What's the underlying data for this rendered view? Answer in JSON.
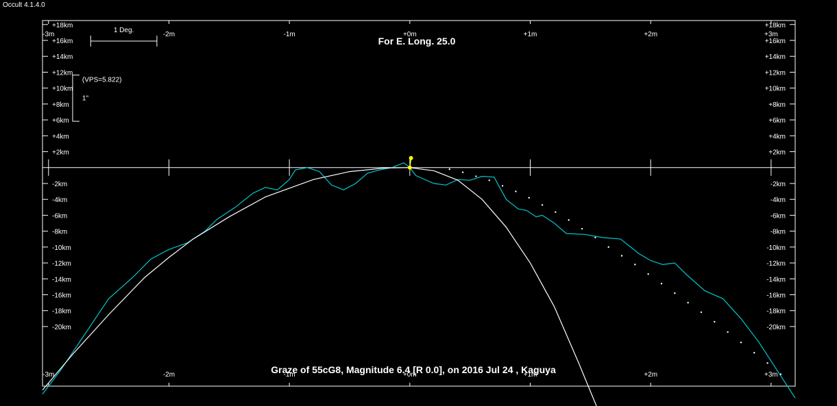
{
  "app_title": "Occult 4.1.4.0",
  "chart_data": {
    "type": "line",
    "title": "For E. Long. 25.0",
    "caption": "Graze of  55cG8,  Magnitude 6.4 [R 0.0],  on 2016 Jul 24 ,  Kaguya",
    "xlim": [
      -3.05,
      3.2
    ],
    "ylim": [
      -27.5,
      18.5
    ],
    "x_ticks": [
      {
        "v": -3,
        "label": "-3m"
      },
      {
        "v": -2,
        "label": "-2m"
      },
      {
        "v": -1,
        "label": "-1m"
      },
      {
        "v": 0,
        "label": "+0m"
      },
      {
        "v": 1,
        "label": "+1m"
      },
      {
        "v": 2,
        "label": "+2m"
      },
      {
        "v": 3,
        "label": "+3m"
      }
    ],
    "y_ticks": [
      {
        "v": 18,
        "label": "+18km"
      },
      {
        "v": 16,
        "label": "+16km"
      },
      {
        "v": 14,
        "label": "+14km"
      },
      {
        "v": 12,
        "label": "+12km"
      },
      {
        "v": 10,
        "label": "+10km"
      },
      {
        "v": 8,
        "label": "+8km"
      },
      {
        "v": 6,
        "label": "+6km"
      },
      {
        "v": 4,
        "label": "+4km"
      },
      {
        "v": 2,
        "label": "+2km"
      },
      {
        "v": -2,
        "label": "-2km"
      },
      {
        "v": -4,
        "label": "-4km"
      },
      {
        "v": -6,
        "label": "-6km"
      },
      {
        "v": -8,
        "label": "-8km"
      },
      {
        "v": -10,
        "label": "-10km"
      },
      {
        "v": -12,
        "label": "-12km"
      },
      {
        "v": -14,
        "label": "-14km"
      },
      {
        "v": -16,
        "label": "-16km"
      },
      {
        "v": -18,
        "label": "-18km"
      },
      {
        "v": -20,
        "label": "-20km"
      }
    ],
    "scale_bar_label": "1 Deg.",
    "scale_bar_deg": 0.55,
    "vps_label": "(VPS=5.822)",
    "vps_unit_label": "1\"",
    "vps_range_km": [
      5.822,
      11.644
    ],
    "series": [
      {
        "role": "limb-profile",
        "color": "#00c8d0",
        "x": [
          -3.05,
          -2.9,
          -2.7,
          -2.5,
          -2.3,
          -2.15,
          -2.0,
          -1.85,
          -1.7,
          -1.6,
          -1.45,
          -1.3,
          -1.2,
          -1.1,
          -1.0,
          -0.95,
          -0.85,
          -0.75,
          -0.65,
          -0.55,
          -0.45,
          -0.35,
          -0.25,
          -0.15,
          -0.05,
          0.0,
          0.05,
          0.2,
          0.3,
          0.4,
          0.5,
          0.6,
          0.7,
          0.8,
          0.9,
          0.97,
          1.05,
          1.1,
          1.2,
          1.3,
          1.45,
          1.6,
          1.75,
          1.9,
          2.0,
          2.1,
          2.2,
          2.3,
          2.45,
          2.6,
          2.75,
          2.9,
          3.05,
          3.2
        ],
        "y": [
          -28.5,
          -25.5,
          -21.0,
          -16.5,
          -13.8,
          -11.5,
          -10.3,
          -9.5,
          -8.0,
          -6.5,
          -5.0,
          -3.2,
          -2.5,
          -2.8,
          -1.5,
          -0.3,
          0.0,
          -0.5,
          -2.2,
          -2.8,
          -2.0,
          -0.7,
          -0.3,
          0.0,
          0.6,
          0.0,
          -1.0,
          -2.0,
          -2.2,
          -1.5,
          -1.6,
          -1.1,
          -1.2,
          -4.0,
          -5.2,
          -5.4,
          -6.2,
          -6.0,
          -7.0,
          -8.3,
          -8.4,
          -8.8,
          -9.0,
          -10.8,
          -11.7,
          -12.2,
          -12.0,
          -13.5,
          -15.5,
          -16.5,
          -19.0,
          -22.0,
          -25.5,
          -29.0
        ]
      },
      {
        "role": "mean-limb-arc",
        "color": "#ffffff",
        "x": [
          -3.05,
          -2.8,
          -2.5,
          -2.2,
          -2.0,
          -1.8,
          -1.5,
          -1.2,
          -1.0,
          -0.8,
          -0.5,
          -0.2,
          0.0,
          0.2,
          0.4,
          0.6,
          0.8,
          1.0,
          1.2,
          1.4,
          1.55
        ],
        "y": [
          -28.0,
          -23.5,
          -18.5,
          -13.8,
          -11.3,
          -9.0,
          -6.2,
          -3.7,
          -2.6,
          -1.5,
          -0.5,
          -0.05,
          0.0,
          -0.4,
          -1.6,
          -4.0,
          -7.5,
          -12.0,
          -17.5,
          -24.5,
          -30.0
        ]
      },
      {
        "role": "predicted-path",
        "color": "#ffffff",
        "style": "dotted",
        "x": [
          0.33,
          0.44,
          0.55,
          0.66,
          0.77,
          0.88,
          0.99,
          1.1,
          1.21,
          1.32,
          1.43,
          1.54,
          1.65,
          1.76,
          1.87,
          1.98,
          2.09,
          2.2,
          2.31,
          2.42,
          2.53,
          2.64,
          2.75,
          2.86,
          2.97,
          3.08
        ],
        "y": [
          -0.2,
          -0.6,
          -1.1,
          -1.6,
          -2.3,
          -3.0,
          -3.8,
          -4.7,
          -5.6,
          -6.6,
          -7.7,
          -8.8,
          -10.0,
          -11.1,
          -12.2,
          -13.4,
          -14.6,
          -15.8,
          -17.0,
          -18.2,
          -19.4,
          -20.7,
          -22.0,
          -23.3,
          -24.6,
          -26.0
        ]
      }
    ],
    "markers": [
      {
        "role": "star-marker",
        "color": "#ffff00",
        "x": 0.0,
        "y": 0.0
      },
      {
        "role": "star-marker",
        "color": "#ffff00",
        "x": 0.01,
        "y": 1.2
      }
    ]
  }
}
